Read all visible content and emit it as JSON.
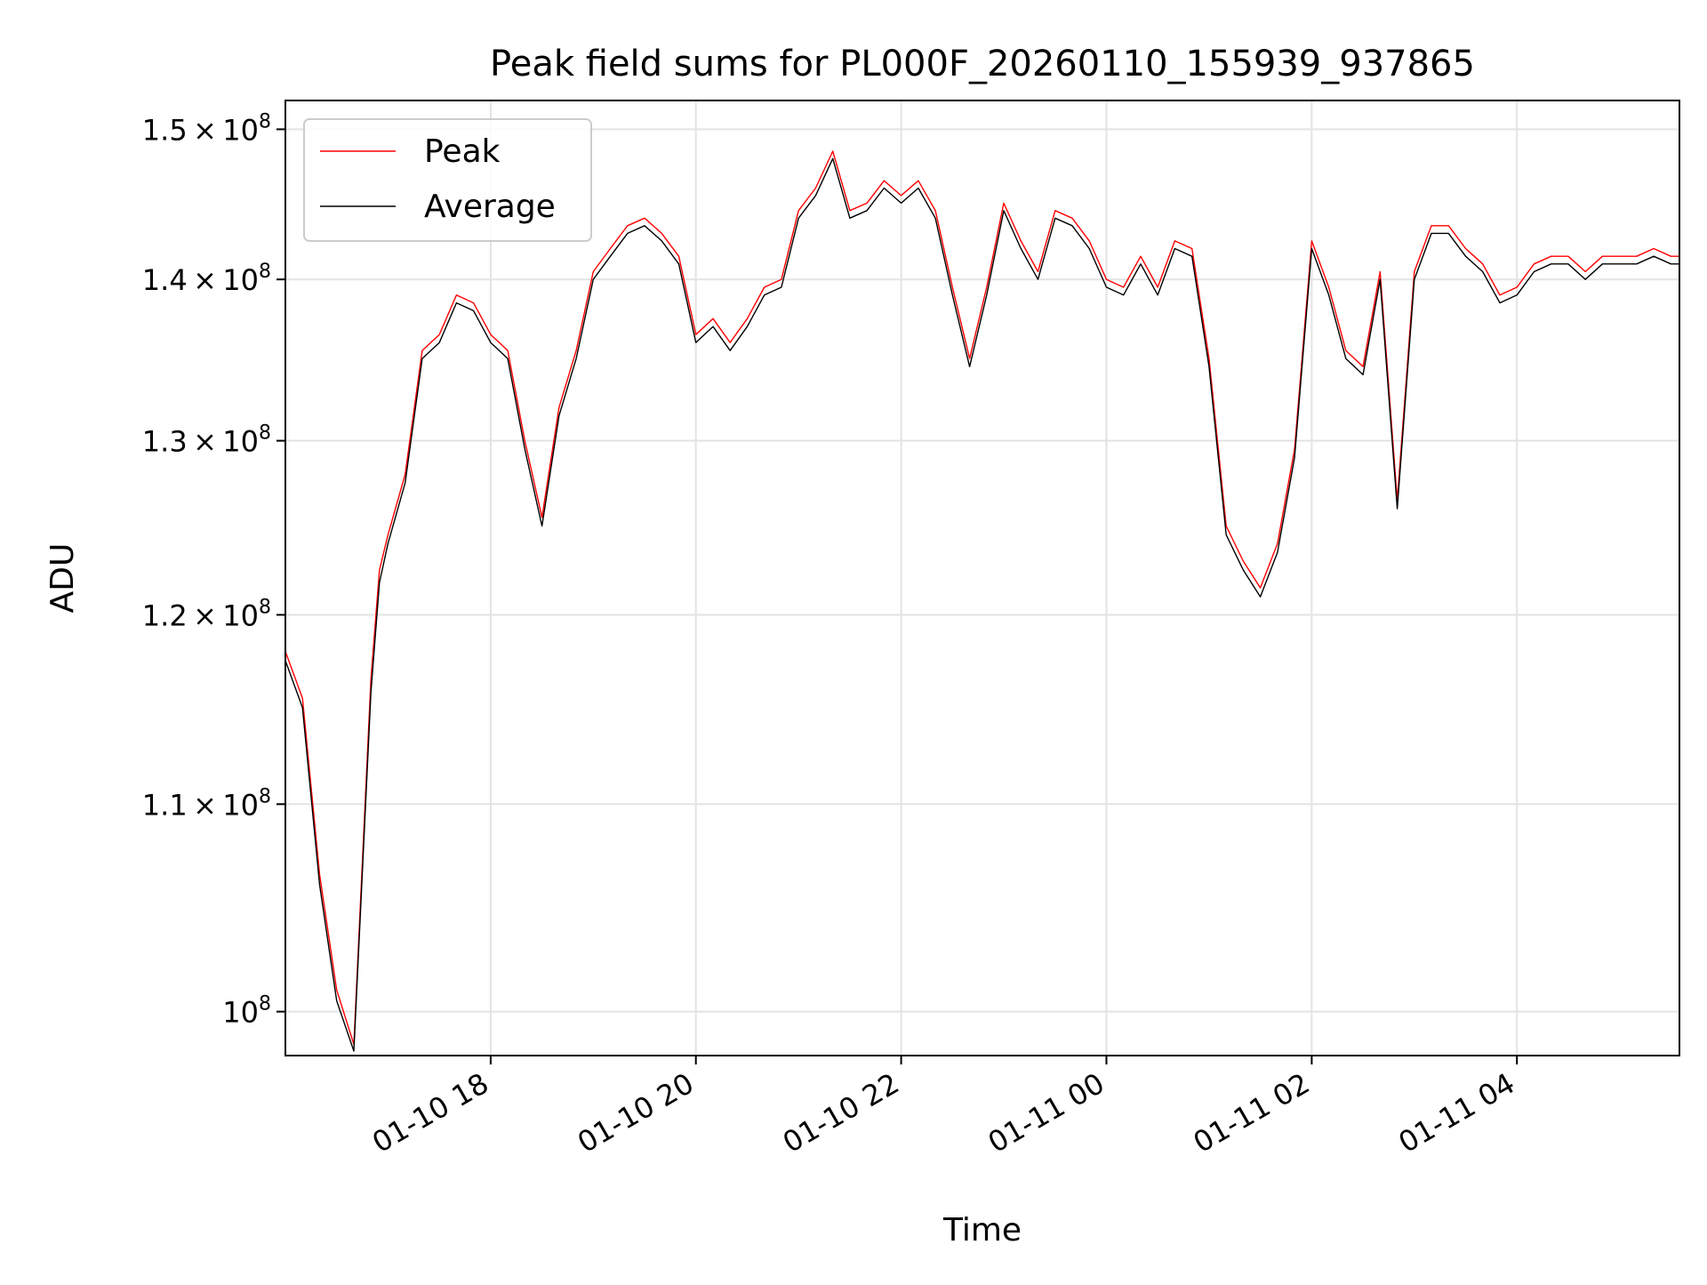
{
  "chart_data": {
    "type": "line",
    "title": "Peak field sums for PL000F_20260110_155939_937865",
    "xlabel": "Time",
    "ylabel": "ADU",
    "y_scale": "log",
    "xlim": [
      "2026-01-10 16:00",
      "2026-01-11 05:35"
    ],
    "ylim": [
      98000000,
      152000000
    ],
    "grid": true,
    "legend_placement": "top-left",
    "x_ticks": [
      {
        "value": "2026-01-10 18:00",
        "label": "01-10 18"
      },
      {
        "value": "2026-01-10 20:00",
        "label": "01-10 20"
      },
      {
        "value": "2026-01-10 22:00",
        "label": "01-10 22"
      },
      {
        "value": "2026-01-11 00:00",
        "label": "01-11 00"
      },
      {
        "value": "2026-01-11 02:00",
        "label": "01-11 02"
      },
      {
        "value": "2026-01-11 04:00",
        "label": "01-11 04"
      }
    ],
    "y_ticks": [
      {
        "value": 100000000,
        "mantissa": "",
        "exponent": "8"
      },
      {
        "value": 110000000,
        "mantissa": "1.1",
        "exponent": "8"
      },
      {
        "value": 120000000,
        "mantissa": "1.2",
        "exponent": "8"
      },
      {
        "value": 130000000,
        "mantissa": "1.3",
        "exponent": "8"
      },
      {
        "value": 140000000,
        "mantissa": "1.4",
        "exponent": "8"
      },
      {
        "value": 150000000,
        "mantissa": "1.5",
        "exponent": "8"
      }
    ],
    "series": [
      {
        "name": "Peak",
        "color": "#ff0000"
      },
      {
        "name": "Average",
        "color": "#000000"
      }
    ],
    "x": [
      "2026-01-10 16:00",
      "2026-01-10 16:10",
      "2026-01-10 16:20",
      "2026-01-10 16:30",
      "2026-01-10 16:40",
      "2026-01-10 16:50",
      "2026-01-10 16:55",
      "2026-01-10 17:00",
      "2026-01-10 17:10",
      "2026-01-10 17:20",
      "2026-01-10 17:30",
      "2026-01-10 17:40",
      "2026-01-10 17:50",
      "2026-01-10 18:00",
      "2026-01-10 18:10",
      "2026-01-10 18:20",
      "2026-01-10 18:30",
      "2026-01-10 18:40",
      "2026-01-10 18:50",
      "2026-01-10 19:00",
      "2026-01-10 19:10",
      "2026-01-10 19:20",
      "2026-01-10 19:30",
      "2026-01-10 19:40",
      "2026-01-10 19:50",
      "2026-01-10 20:00",
      "2026-01-10 20:10",
      "2026-01-10 20:20",
      "2026-01-10 20:30",
      "2026-01-10 20:40",
      "2026-01-10 20:50",
      "2026-01-10 21:00",
      "2026-01-10 21:10",
      "2026-01-10 21:20",
      "2026-01-10 21:30",
      "2026-01-10 21:40",
      "2026-01-10 21:50",
      "2026-01-10 22:00",
      "2026-01-10 22:10",
      "2026-01-10 22:20",
      "2026-01-10 22:30",
      "2026-01-10 22:40",
      "2026-01-10 22:50",
      "2026-01-10 23:00",
      "2026-01-10 23:10",
      "2026-01-10 23:20",
      "2026-01-10 23:30",
      "2026-01-10 23:40",
      "2026-01-10 23:50",
      "2026-01-11 00:00",
      "2026-01-11 00:10",
      "2026-01-11 00:20",
      "2026-01-11 00:30",
      "2026-01-11 00:40",
      "2026-01-11 00:50",
      "2026-01-11 01:00",
      "2026-01-11 01:10",
      "2026-01-11 01:20",
      "2026-01-11 01:30",
      "2026-01-11 01:40",
      "2026-01-11 01:50",
      "2026-01-11 02:00",
      "2026-01-11 02:10",
      "2026-01-11 02:20",
      "2026-01-11 02:30",
      "2026-01-11 02:40",
      "2026-01-11 02:50",
      "2026-01-11 03:00",
      "2026-01-11 03:10",
      "2026-01-11 03:20",
      "2026-01-11 03:30",
      "2026-01-11 03:40",
      "2026-01-11 03:50",
      "2026-01-11 04:00",
      "2026-01-11 04:10",
      "2026-01-11 04:20",
      "2026-01-11 04:30",
      "2026-01-11 04:40",
      "2026-01-11 04:50",
      "2026-01-11 05:00",
      "2026-01-11 05:10",
      "2026-01-11 05:20",
      "2026-01-11 05:30",
      "2026-01-11 05:35"
    ],
    "peak": [
      118000000,
      115500000,
      106500000,
      101000000,
      98500000,
      116500000,
      122500000,
      124500000,
      128000000,
      135500000,
      136500000,
      139000000,
      138500000,
      136500000,
      135500000,
      130000000,
      125500000,
      132000000,
      135500000,
      140500000,
      142000000,
      143500000,
      144000000,
      143000000,
      141500000,
      136500000,
      137500000,
      136000000,
      137500000,
      139500000,
      140000000,
      144500000,
      146000000,
      148500000,
      144500000,
      145000000,
      146500000,
      145500000,
      146500000,
      144500000,
      139500000,
      135000000,
      139500000,
      145000000,
      142500000,
      140500000,
      144500000,
      144000000,
      142500000,
      140000000,
      139500000,
      141500000,
      139500000,
      142500000,
      142000000,
      135000000,
      125000000,
      123000000,
      121500000,
      124000000,
      129500000,
      142500000,
      139500000,
      135500000,
      134500000,
      140500000,
      126500000,
      140500000,
      143500000,
      143500000,
      142000000,
      141000000,
      139000000,
      139500000,
      141000000,
      141500000,
      141500000,
      140500000,
      141500000,
      141500000,
      141500000,
      142000000,
      141500000,
      141500000
    ],
    "average": [
      117500000,
      115000000,
      106000000,
      100500000,
      98200000,
      115800000,
      121800000,
      124000000,
      127500000,
      135000000,
      136000000,
      138500000,
      138000000,
      136000000,
      135000000,
      129500000,
      125000000,
      131500000,
      135000000,
      140000000,
      141500000,
      143000000,
      143500000,
      142500000,
      141000000,
      136000000,
      137000000,
      135500000,
      137000000,
      139000000,
      139500000,
      144000000,
      145500000,
      148000000,
      144000000,
      144500000,
      146000000,
      145000000,
      146000000,
      144000000,
      139000000,
      134500000,
      139000000,
      144500000,
      142000000,
      140000000,
      144000000,
      143500000,
      142000000,
      139500000,
      139000000,
      141000000,
      139000000,
      142000000,
      141500000,
      134500000,
      124500000,
      122500000,
      121000000,
      123500000,
      129000000,
      142000000,
      139000000,
      135000000,
      134000000,
      140000000,
      126000000,
      140000000,
      143000000,
      143000000,
      141500000,
      140500000,
      138500000,
      139000000,
      140500000,
      141000000,
      141000000,
      140000000,
      141000000,
      141000000,
      141000000,
      141500000,
      141000000,
      141000000
    ]
  }
}
